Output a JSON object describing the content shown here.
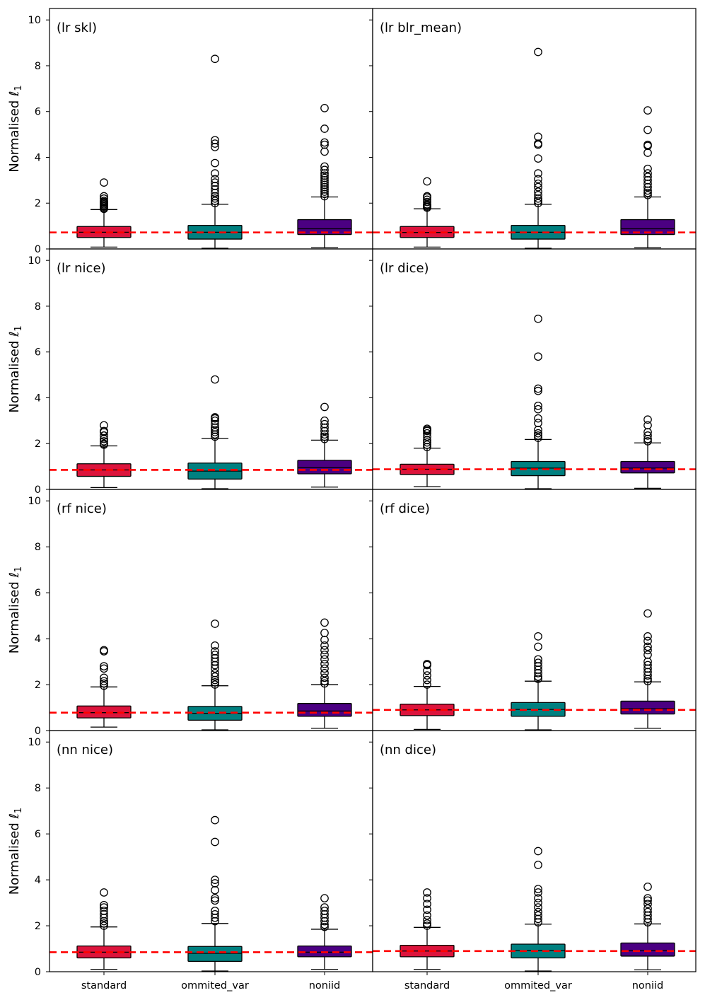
{
  "chart_data": {
    "type": "boxplot",
    "layout": "4 rows x 2 columns, shared axes",
    "ylabel": "Normalised",
    "ylabel_symbol": "ℓ",
    "ylabel_subscript": "1",
    "ylim": [
      0,
      10.5
    ],
    "yticks": [
      0,
      2,
      4,
      6,
      8,
      10
    ],
    "categories": [
      "standard",
      "ommited_var",
      "noniid"
    ],
    "colors": {
      "standard": "#dc143c",
      "ommited_var": "#008080",
      "noniid": "#4b0082",
      "reference_line": "#ff0000"
    },
    "panels": [
      {
        "title": "(lr skl)",
        "reference": 0.72,
        "boxes": [
          {
            "category": "standard",
            "whisker_low": 0.08,
            "q1": 0.5,
            "median": 0.73,
            "q3": 0.98,
            "whisker_high": 1.72,
            "outliers": [
              1.75,
              1.8,
              1.85,
              1.9,
              1.95,
              2.0,
              2.05,
              2.1,
              2.2,
              2.3,
              2.9
            ]
          },
          {
            "category": "ommited_var",
            "whisker_low": 0.03,
            "q1": 0.43,
            "median": 0.73,
            "q3": 1.03,
            "whisker_high": 1.95,
            "outliers": [
              2.0,
              2.1,
              2.2,
              2.3,
              2.45,
              2.6,
              2.75,
              2.9,
              3.05,
              3.3,
              3.75,
              4.45,
              4.6,
              4.75,
              8.3
            ]
          },
          {
            "category": "noniid",
            "whisker_low": 0.05,
            "q1": 0.63,
            "median": 0.88,
            "q3": 1.28,
            "whisker_high": 2.27,
            "outliers": [
              2.3,
              2.4,
              2.5,
              2.6,
              2.7,
              2.8,
              2.9,
              3.0,
              3.1,
              3.2,
              3.3,
              3.45,
              3.6,
              4.25,
              4.55,
              4.65,
              5.25,
              6.15
            ]
          }
        ]
      },
      {
        "title": "(lr blr_mean)",
        "reference": 0.72,
        "boxes": [
          {
            "category": "standard",
            "whisker_low": 0.08,
            "q1": 0.5,
            "median": 0.72,
            "q3": 0.98,
            "whisker_high": 1.75,
            "outliers": [
              1.8,
              1.85,
              1.9,
              1.95,
              2.05,
              2.15,
              2.25,
              2.3,
              2.95
            ]
          },
          {
            "category": "ommited_var",
            "whisker_low": 0.03,
            "q1": 0.43,
            "median": 0.73,
            "q3": 1.03,
            "whisker_high": 1.95,
            "outliers": [
              2.0,
              2.1,
              2.2,
              2.35,
              2.5,
              2.7,
              2.85,
              3.05,
              3.3,
              3.95,
              4.55,
              4.6,
              4.9,
              8.6
            ]
          },
          {
            "category": "noniid",
            "whisker_low": 0.05,
            "q1": 0.63,
            "median": 0.88,
            "q3": 1.28,
            "whisker_high": 2.27,
            "outliers": [
              2.35,
              2.45,
              2.55,
              2.7,
              2.85,
              3.0,
              3.15,
              3.3,
              3.5,
              4.2,
              4.5,
              4.55,
              5.2,
              6.05
            ]
          }
        ]
      },
      {
        "title": "(lr nice)",
        "reference": 0.85,
        "boxes": [
          {
            "category": "standard",
            "whisker_low": 0.08,
            "q1": 0.57,
            "median": 0.85,
            "q3": 1.12,
            "whisker_high": 1.9,
            "outliers": [
              1.95,
              2.0,
              2.1,
              2.2,
              2.35,
              2.5,
              2.55,
              2.8
            ]
          },
          {
            "category": "ommited_var",
            "whisker_low": 0.03,
            "q1": 0.45,
            "median": 0.8,
            "q3": 1.15,
            "whisker_high": 2.22,
            "outliers": [
              2.3,
              2.4,
              2.5,
              2.6,
              2.7,
              2.85,
              3.0,
              3.1,
              3.15,
              4.8
            ]
          },
          {
            "category": "noniid",
            "whisker_low": 0.1,
            "q1": 0.68,
            "median": 0.95,
            "q3": 1.27,
            "whisker_high": 2.15,
            "outliers": [
              2.2,
              2.3,
              2.4,
              2.55,
              2.7,
              2.85,
              3.0,
              3.6
            ]
          }
        ]
      },
      {
        "title": "(lr dice)",
        "reference": 0.88,
        "boxes": [
          {
            "category": "standard",
            "whisker_low": 0.12,
            "q1": 0.65,
            "median": 0.88,
            "q3": 1.1,
            "whisker_high": 1.8,
            "outliers": [
              1.85,
              1.95,
              2.05,
              2.15,
              2.3,
              2.45,
              2.55,
              2.6,
              2.65
            ]
          },
          {
            "category": "ommited_var",
            "whisker_low": 0.03,
            "q1": 0.6,
            "median": 0.93,
            "q3": 1.22,
            "whisker_high": 2.18,
            "outliers": [
              2.25,
              2.35,
              2.45,
              2.6,
              2.9,
              3.1,
              3.5,
              3.65,
              4.3,
              4.4,
              5.8,
              7.45
            ]
          },
          {
            "category": "noniid",
            "whisker_low": 0.05,
            "q1": 0.72,
            "median": 0.93,
            "q3": 1.22,
            "whisker_high": 2.03,
            "outliers": [
              2.1,
              2.2,
              2.35,
              2.5,
              2.8,
              3.05
            ]
          }
        ]
      },
      {
        "title": "(rf nice)",
        "reference": 0.78,
        "boxes": [
          {
            "category": "standard",
            "whisker_low": 0.15,
            "q1": 0.55,
            "median": 0.78,
            "q3": 1.07,
            "whisker_high": 1.9,
            "outliers": [
              1.95,
              2.05,
              2.15,
              2.3,
              2.7,
              2.8,
              3.45,
              3.5
            ]
          },
          {
            "category": "ommited_var",
            "whisker_low": 0.03,
            "q1": 0.45,
            "median": 0.75,
            "q3": 1.05,
            "whisker_high": 1.95,
            "outliers": [
              2.0,
              2.1,
              2.2,
              2.35,
              2.5,
              2.7,
              2.85,
              3.0,
              3.15,
              3.3,
              3.45,
              3.7,
              4.65
            ]
          },
          {
            "category": "noniid",
            "whisker_low": 0.1,
            "q1": 0.62,
            "median": 0.85,
            "q3": 1.18,
            "whisker_high": 2.0,
            "outliers": [
              2.05,
              2.15,
              2.3,
              2.5,
              2.7,
              2.9,
              3.1,
              3.3,
              3.5,
              3.7,
              3.95,
              4.25,
              4.7
            ]
          }
        ]
      },
      {
        "title": "(rf dice)",
        "reference": 0.9,
        "boxes": [
          {
            "category": "standard",
            "whisker_low": 0.05,
            "q1": 0.65,
            "median": 0.9,
            "q3": 1.15,
            "whisker_high": 1.92,
            "outliers": [
              2.0,
              2.2,
              2.4,
              2.6,
              2.85,
              2.9
            ]
          },
          {
            "category": "ommited_var",
            "whisker_low": 0.03,
            "q1": 0.62,
            "median": 0.92,
            "q3": 1.22,
            "whisker_high": 2.15,
            "outliers": [
              2.25,
              2.35,
              2.5,
              2.65,
              2.8,
              2.95,
              3.1,
              3.65,
              4.1
            ]
          },
          {
            "category": "noniid",
            "whisker_low": 0.1,
            "q1": 0.72,
            "median": 0.95,
            "q3": 1.28,
            "whisker_high": 2.12,
            "outliers": [
              2.15,
              2.25,
              2.4,
              2.55,
              2.7,
              2.85,
              3.0,
              3.3,
              3.5,
              3.65,
              3.9,
              4.1,
              5.1
            ]
          }
        ]
      },
      {
        "title": "(nn nice)",
        "reference": 0.85,
        "boxes": [
          {
            "category": "standard",
            "whisker_low": 0.1,
            "q1": 0.6,
            "median": 0.85,
            "q3": 1.12,
            "whisker_high": 1.95,
            "outliers": [
              2.0,
              2.1,
              2.2,
              2.35,
              2.5,
              2.65,
              2.8,
              2.9,
              3.45
            ]
          },
          {
            "category": "ommited_var",
            "whisker_low": 0.03,
            "q1": 0.45,
            "median": 0.8,
            "q3": 1.1,
            "whisker_high": 2.1,
            "outliers": [
              2.2,
              2.35,
              2.5,
              2.65,
              3.1,
              3.2,
              3.55,
              3.85,
              4.0,
              5.65,
              6.6
            ]
          },
          {
            "category": "noniid",
            "whisker_low": 0.1,
            "q1": 0.65,
            "median": 0.85,
            "q3": 1.12,
            "whisker_high": 1.85,
            "outliers": [
              1.95,
              2.05,
              2.2,
              2.35,
              2.5,
              2.65,
              2.8,
              3.2
            ]
          }
        ]
      },
      {
        "title": "(nn dice)",
        "reference": 0.9,
        "boxes": [
          {
            "category": "standard",
            "whisker_low": 0.1,
            "q1": 0.65,
            "median": 0.9,
            "q3": 1.15,
            "whisker_high": 1.93,
            "outliers": [
              2.0,
              2.1,
              2.25,
              2.45,
              2.7,
              2.95,
              3.2,
              3.45
            ]
          },
          {
            "category": "ommited_var",
            "whisker_low": 0.03,
            "q1": 0.6,
            "median": 0.92,
            "q3": 1.2,
            "whisker_high": 2.07,
            "outliers": [
              2.15,
              2.3,
              2.45,
              2.6,
              2.8,
              3.0,
              3.2,
              3.45,
              3.6,
              4.65,
              5.25
            ]
          },
          {
            "category": "noniid",
            "whisker_low": 0.08,
            "q1": 0.68,
            "median": 0.92,
            "q3": 1.25,
            "whisker_high": 2.08,
            "outliers": [
              2.15,
              2.3,
              2.45,
              2.6,
              2.75,
              2.95,
              3.1,
              3.2,
              3.7
            ]
          }
        ]
      }
    ]
  }
}
